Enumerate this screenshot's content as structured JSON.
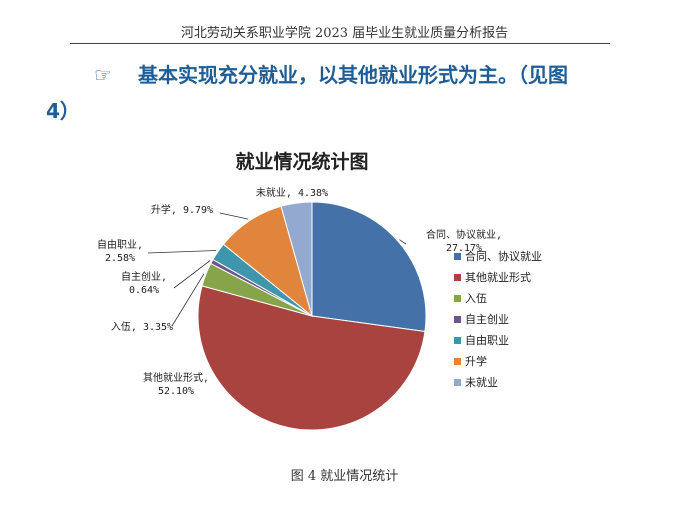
{
  "header": {
    "running_title": "河北劳动关系职业学院 2023 届毕业生就业质量分析报告"
  },
  "heading": {
    "bullet_glyph": "☞",
    "line1": "基本实现充分就业，以其他就业形式为主。（见图",
    "line2": "4）"
  },
  "caption": {
    "text": "图 4  就业情况统计"
  },
  "chart_data": {
    "type": "pie",
    "title": "就业情况统计图",
    "legend_position": "right",
    "slices": [
      {
        "name": "合同、协议就业",
        "value": 27.17,
        "label": "合同、协议就业,\n27.17%",
        "color": "#4472a8"
      },
      {
        "name": "其他就业形式",
        "value": 52.1,
        "label": "其他就业形式,\n52.10%",
        "color": "#a84340"
      },
      {
        "name": "入伍",
        "value": 3.35,
        "label": "入伍, 3.35%",
        "color": "#86a54b"
      },
      {
        "name": "自主创业",
        "value": 0.64,
        "label": "自主创业,\n0.64%",
        "color": "#6e558c"
      },
      {
        "name": "自由职业",
        "value": 2.58,
        "label": "自由职业,\n2.58%",
        "color": "#3e96ad"
      },
      {
        "name": "升学",
        "value": 9.79,
        "label": "升学, 9.79%",
        "color": "#e0853b"
      },
      {
        "name": "未就业",
        "value": 4.38,
        "label": "未就业, 4.38%",
        "color": "#93a9cf"
      }
    ]
  }
}
